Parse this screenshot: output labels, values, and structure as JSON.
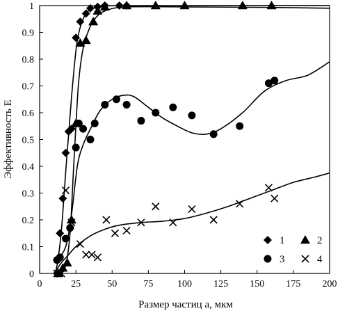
{
  "chart_data": {
    "type": "scatter",
    "xlabel": "Размер частиц a, мкм",
    "ylabel": "Эффективность E",
    "xlim": [
      0,
      200
    ],
    "ylim": [
      0,
      1
    ],
    "x_ticks": [
      0,
      25,
      50,
      75,
      100,
      125,
      150,
      175,
      200
    ],
    "y_ticks": [
      0,
      0.1,
      0.2,
      0.3,
      0.4,
      0.5,
      0.6,
      0.7,
      0.8,
      0.9,
      1
    ],
    "x_tick_labels": [
      "0",
      "25",
      "50",
      "75",
      "100",
      "125",
      "150",
      "175",
      "200"
    ],
    "y_tick_labels": [
      "0",
      "0.1",
      "0.2",
      "0.3",
      "0.4",
      "0.5",
      "0.6",
      "0.7",
      "0.8",
      "0.9",
      "1"
    ],
    "grid": false,
    "legend_position": "bottom-right",
    "series": [
      {
        "name": "1",
        "marker": "diamond",
        "points": [
          [
            12,
            0.0
          ],
          [
            14,
            0.15
          ],
          [
            16,
            0.28
          ],
          [
            18,
            0.45
          ],
          [
            20,
            0.53
          ],
          [
            22,
            0.54
          ],
          [
            25,
            0.88
          ],
          [
            28,
            0.94
          ],
          [
            32,
            0.97
          ],
          [
            35,
            0.99
          ],
          [
            40,
            0.995
          ],
          [
            45,
            1.0
          ],
          [
            55,
            1.0
          ],
          [
            60,
            1.0
          ]
        ],
        "curve": [
          [
            10,
            0
          ],
          [
            12,
            0.03
          ],
          [
            15,
            0.16
          ],
          [
            18,
            0.38
          ],
          [
            20,
            0.52
          ],
          [
            23,
            0.72
          ],
          [
            26,
            0.87
          ],
          [
            30,
            0.95
          ],
          [
            35,
            0.985
          ],
          [
            45,
            0.998
          ],
          [
            60,
            1.0
          ],
          [
            100,
            1.0
          ],
          [
            160,
            1.0
          ],
          [
            200,
            1.0
          ]
        ]
      },
      {
        "name": "2",
        "marker": "triangle",
        "points": [
          [
            13,
            0.0
          ],
          [
            16,
            0.02
          ],
          [
            19,
            0.04
          ],
          [
            22,
            0.2
          ],
          [
            25,
            0.56
          ],
          [
            28,
            0.86
          ],
          [
            32,
            0.87
          ],
          [
            37,
            0.94
          ],
          [
            40,
            0.98
          ],
          [
            45,
            0.995
          ],
          [
            60,
            1.0
          ],
          [
            80,
            1.0
          ],
          [
            100,
            1.0
          ],
          [
            140,
            1.0
          ],
          [
            160,
            1.0
          ]
        ],
        "curve": [
          [
            14,
            0
          ],
          [
            18,
            0.03
          ],
          [
            21,
            0.15
          ],
          [
            23,
            0.35
          ],
          [
            25,
            0.55
          ],
          [
            27,
            0.72
          ],
          [
            30,
            0.84
          ],
          [
            34,
            0.91
          ],
          [
            38,
            0.95
          ],
          [
            45,
            0.98
          ],
          [
            60,
            0.995
          ],
          [
            100,
            0.995
          ],
          [
            160,
            0.993
          ],
          [
            200,
            0.99
          ]
        ]
      },
      {
        "name": "3",
        "marker": "circle",
        "points": [
          [
            12,
            0.05
          ],
          [
            14,
            0.06
          ],
          [
            18,
            0.13
          ],
          [
            21,
            0.17
          ],
          [
            25,
            0.47
          ],
          [
            27,
            0.56
          ],
          [
            30,
            0.54
          ],
          [
            35,
            0.5
          ],
          [
            38,
            0.56
          ],
          [
            45,
            0.63
          ],
          [
            53,
            0.65
          ],
          [
            60,
            0.63
          ],
          [
            70,
            0.57
          ],
          [
            80,
            0.6
          ],
          [
            92,
            0.62
          ],
          [
            105,
            0.59
          ],
          [
            120,
            0.52
          ],
          [
            138,
            0.55
          ],
          [
            158,
            0.71
          ],
          [
            162,
            0.72
          ]
        ],
        "curve": [
          [
            12,
            0.05
          ],
          [
            18,
            0.1
          ],
          [
            22,
            0.22
          ],
          [
            26,
            0.4
          ],
          [
            30,
            0.48
          ],
          [
            36,
            0.55
          ],
          [
            42,
            0.61
          ],
          [
            50,
            0.65
          ],
          [
            58,
            0.665
          ],
          [
            65,
            0.66
          ],
          [
            75,
            0.62
          ],
          [
            85,
            0.58
          ],
          [
            95,
            0.55
          ],
          [
            105,
            0.525
          ],
          [
            115,
            0.52
          ],
          [
            125,
            0.54
          ],
          [
            140,
            0.6
          ],
          [
            155,
            0.68
          ],
          [
            170,
            0.72
          ],
          [
            185,
            0.74
          ],
          [
            200,
            0.79
          ]
        ]
      },
      {
        "name": "4",
        "marker": "cross",
        "points": [
          [
            12,
            0.0
          ],
          [
            15,
            0.0
          ],
          [
            18,
            0.31
          ],
          [
            22,
            0.19
          ],
          [
            28,
            0.11
          ],
          [
            32,
            0.07
          ],
          [
            36,
            0.07
          ],
          [
            40,
            0.06
          ],
          [
            46,
            0.2
          ],
          [
            52,
            0.15
          ],
          [
            60,
            0.16
          ],
          [
            70,
            0.19
          ],
          [
            80,
            0.25
          ],
          [
            92,
            0.19
          ],
          [
            105,
            0.24
          ],
          [
            120,
            0.2
          ],
          [
            138,
            0.26
          ],
          [
            158,
            0.32
          ],
          [
            162,
            0.28
          ]
        ],
        "curve": [
          [
            10,
            0.0
          ],
          [
            15,
            0.04
          ],
          [
            20,
            0.07
          ],
          [
            25,
            0.1
          ],
          [
            35,
            0.14
          ],
          [
            45,
            0.165
          ],
          [
            55,
            0.18
          ],
          [
            70,
            0.19
          ],
          [
            85,
            0.195
          ],
          [
            100,
            0.205
          ],
          [
            115,
            0.225
          ],
          [
            130,
            0.25
          ],
          [
            145,
            0.28
          ],
          [
            160,
            0.31
          ],
          [
            175,
            0.34
          ],
          [
            190,
            0.36
          ],
          [
            200,
            0.375
          ]
        ]
      }
    ]
  }
}
